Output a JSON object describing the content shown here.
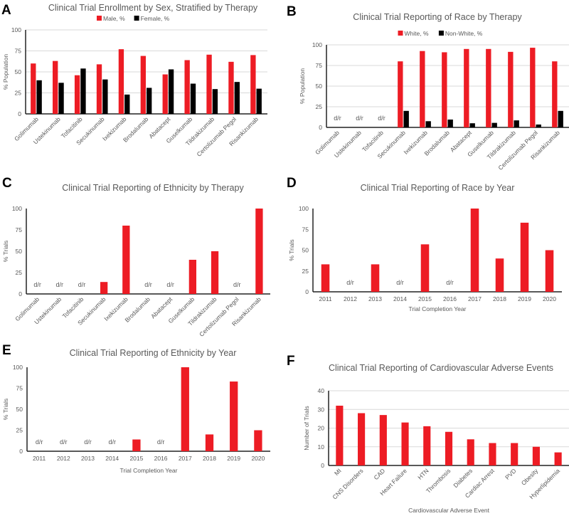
{
  "chart_data": [
    {
      "panel": "A",
      "type": "bar",
      "title": "Clinical Trial Enrollment by Sex, Stratified by Therapy",
      "xlabel": "",
      "ylabel": "% Population",
      "ylim": [
        0,
        100
      ],
      "yticks": [
        0,
        25,
        50,
        75,
        100
      ],
      "grid": true,
      "legend": "top",
      "categories": [
        "Golimumab",
        "Ustekinumab",
        "Tofacitinib",
        "Secukinumab",
        "Ixekizumab",
        "Brodalumab",
        "Abatacept",
        "Guselkumab",
        "Tildrakizumab",
        "Certolizumab Pegol",
        "Risankizumab"
      ],
      "series": [
        {
          "name": "Male, %",
          "color": "#ed1c24",
          "values": [
            60,
            63,
            46,
            59,
            77,
            69,
            47,
            64,
            70.5,
            62,
            70
          ]
        },
        {
          "name": "Female, %",
          "color": "#000000",
          "values": [
            40,
            37,
            54,
            41,
            23,
            31,
            53,
            36,
            29.5,
            38,
            30
          ]
        }
      ]
    },
    {
      "panel": "B",
      "type": "bar",
      "title": "Clinical Trial Reporting of Race by Therapy",
      "xlabel": "",
      "ylabel": "% Population",
      "ylim": [
        0,
        100
      ],
      "yticks": [
        0,
        25,
        50,
        75,
        100
      ],
      "grid": true,
      "legend": "top",
      "na_label": "d/r",
      "categories": [
        "Golimumab",
        "Ustekinumab",
        "Tofacitinib",
        "Secukinumab",
        "Ixekizumab",
        "Brodalumab",
        "Abatacept",
        "Guselkumab",
        "Tildrakizumab",
        "Certolizumab Pegol",
        "Risankizumab"
      ],
      "series": [
        {
          "name": "White, %",
          "color": "#ed1c24",
          "values": [
            null,
            null,
            null,
            80,
            92.5,
            91,
            95,
            95,
            91.5,
            96.5,
            80
          ]
        },
        {
          "name": "Non-White, %",
          "color": "#000000",
          "values": [
            null,
            null,
            null,
            20,
            7.5,
            9.5,
            5,
            5.5,
            8.5,
            3.5,
            20
          ]
        }
      ]
    },
    {
      "panel": "C",
      "type": "bar",
      "title": "Clinical Trial Reporting of Ethnicity by Therapy",
      "xlabel": "",
      "ylabel": "% Trials",
      "ylim": [
        0,
        100
      ],
      "yticks": [
        0,
        25,
        50,
        75,
        100
      ],
      "grid": false,
      "na_label": "d/r",
      "categories": [
        "Golimumab",
        "Ustekinumab",
        "Tofacitinib",
        "Secukinumab",
        "Ixekizumab",
        "Brodalumab",
        "Abatacept",
        "Guselkumab",
        "Tildrakizumab",
        "Certolizumab Pegol",
        "Risankizumab"
      ],
      "series": [
        {
          "color": "#ed1c24",
          "values": [
            null,
            null,
            null,
            14,
            80,
            null,
            null,
            40,
            50,
            null,
            100
          ]
        }
      ]
    },
    {
      "panel": "D",
      "type": "bar",
      "title": "Clinical Trial Reporting of Race by Year",
      "xlabel": "Trial Completion Year",
      "ylabel": "% Trials",
      "ylim": [
        0,
        100
      ],
      "yticks": [
        0,
        25,
        50,
        75,
        100
      ],
      "grid": false,
      "na_label": "d/r",
      "categories": [
        "2011",
        "2012",
        "2013",
        "2014",
        "2015",
        "2016",
        "2017",
        "2018",
        "2019",
        "2020"
      ],
      "series": [
        {
          "color": "#ed1c24",
          "values": [
            33,
            null,
            33,
            null,
            57,
            null,
            100,
            40,
            83,
            50
          ]
        }
      ]
    },
    {
      "panel": "E",
      "type": "bar",
      "title": "Clinical Trial Reporting of Ethnicity by Year",
      "xlabel": "Trial Completion Year",
      "ylabel": "% Trials",
      "ylim": [
        0,
        100
      ],
      "yticks": [
        0,
        25,
        50,
        75,
        100
      ],
      "grid": false,
      "na_label": "d/r",
      "categories": [
        "2011",
        "2012",
        "2013",
        "2014",
        "2015",
        "2016",
        "2017",
        "2018",
        "2019",
        "2020"
      ],
      "series": [
        {
          "color": "#ed1c24",
          "values": [
            null,
            null,
            null,
            null,
            14,
            null,
            100,
            20,
            83,
            25
          ]
        }
      ]
    },
    {
      "panel": "F",
      "type": "bar",
      "title": "Clinical Trial Reporting of Cardiovascular Adverse Events",
      "xlabel": "Cardiovascular Adverse Event",
      "ylabel": "Number of Trials",
      "ylim": [
        0,
        40
      ],
      "yticks": [
        0,
        10,
        20,
        30,
        40
      ],
      "grid": true,
      "categories": [
        "MI",
        "CNS Disorders",
        "CAD",
        "Heart Failure",
        "HTN",
        "Thrombosis",
        "Diabetes",
        "Cardiac Arrest",
        "PVD",
        "Obesity",
        "Hyperlipidemia"
      ],
      "series": [
        {
          "color": "#ed1c24",
          "values": [
            32,
            28,
            27,
            23,
            21,
            18,
            14,
            12,
            12,
            10,
            7
          ]
        }
      ]
    }
  ]
}
